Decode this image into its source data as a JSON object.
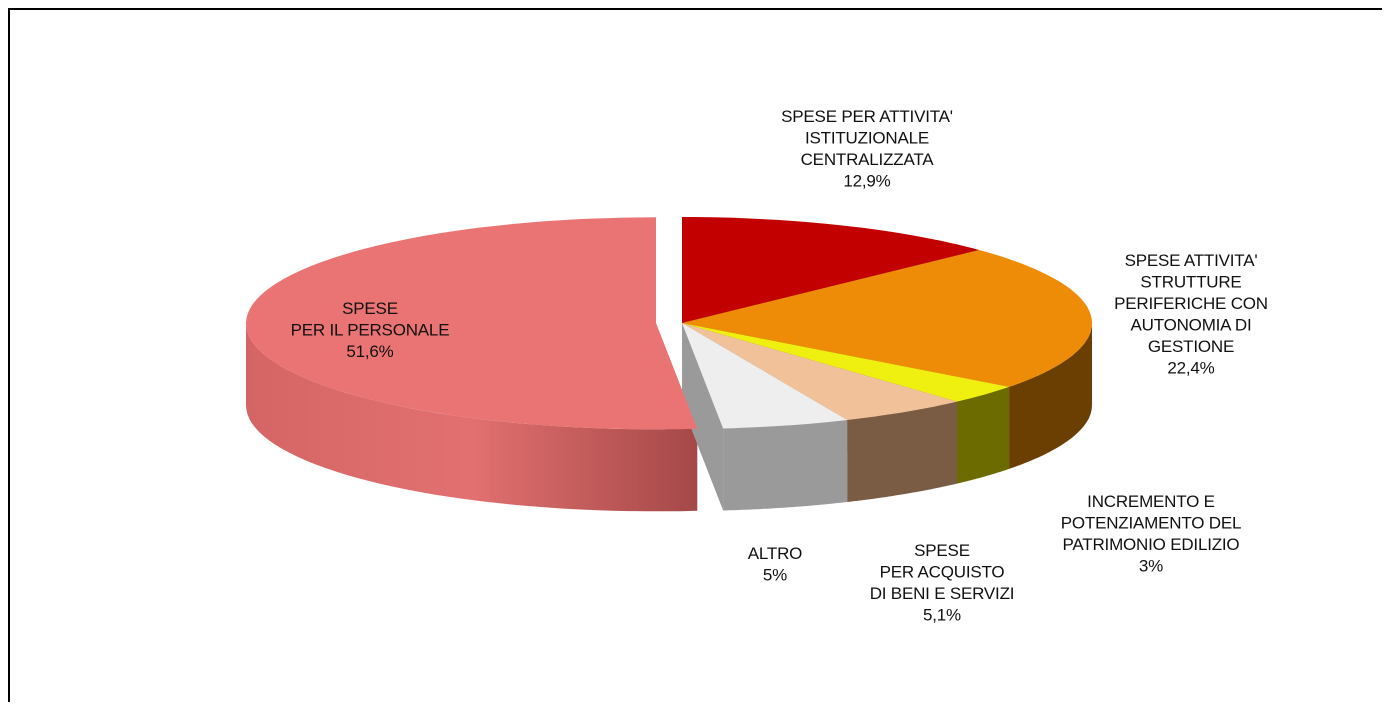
{
  "chart_data": {
    "type": "pie",
    "style": "3d-exploded",
    "start_angle_deg": 90,
    "direction": "clockwise",
    "slices": [
      {
        "label_lines": [
          "SPESE PER ATTIVITA'",
          "ISTITUZIONALE",
          "CENTRALIZZATA"
        ],
        "value": 12.9,
        "value_label": "12,9%",
        "color": "#c20000",
        "side": "#7a0000",
        "explode": 0
      },
      {
        "label_lines": [
          "SPESE ATTIVITA'",
          "STRUTTURE",
          "PERIFERICHE  CON",
          "AUTONOMIA  DI",
          "GESTIONE"
        ],
        "value": 22.4,
        "value_label": "22,4%",
        "color": "#ee8c08",
        "side": "#6b3e02",
        "explode": 0
      },
      {
        "label_lines": [
          "INCREMENTO  E",
          "POTENZIAMENTO  DEL",
          "PATRIMONIO  EDILIZIO"
        ],
        "value": 3,
        "value_label": "3%",
        "color": "#f0f010",
        "side": "#6b6b00",
        "explode": 0
      },
      {
        "label_lines": [
          "SPESE",
          "PER ACQUISTO",
          "DI BENI E SERVIZI"
        ],
        "value": 5.1,
        "value_label": "5,1%",
        "color": "#f1c29a",
        "side": "#7a5c45",
        "explode": 0
      },
      {
        "label_lines": [
          "ALTRO"
        ],
        "value": 5,
        "value_label": "5%",
        "color": "#eeeeee",
        "side": "#9a9a9a",
        "explode": 0
      },
      {
        "label_lines": [
          "SPESE",
          "PER IL  PERSONALE"
        ],
        "value": 51.6,
        "value_label": "51,6%",
        "color": "#ea7474",
        "side": "#c25858",
        "explode": 1
      }
    ]
  }
}
